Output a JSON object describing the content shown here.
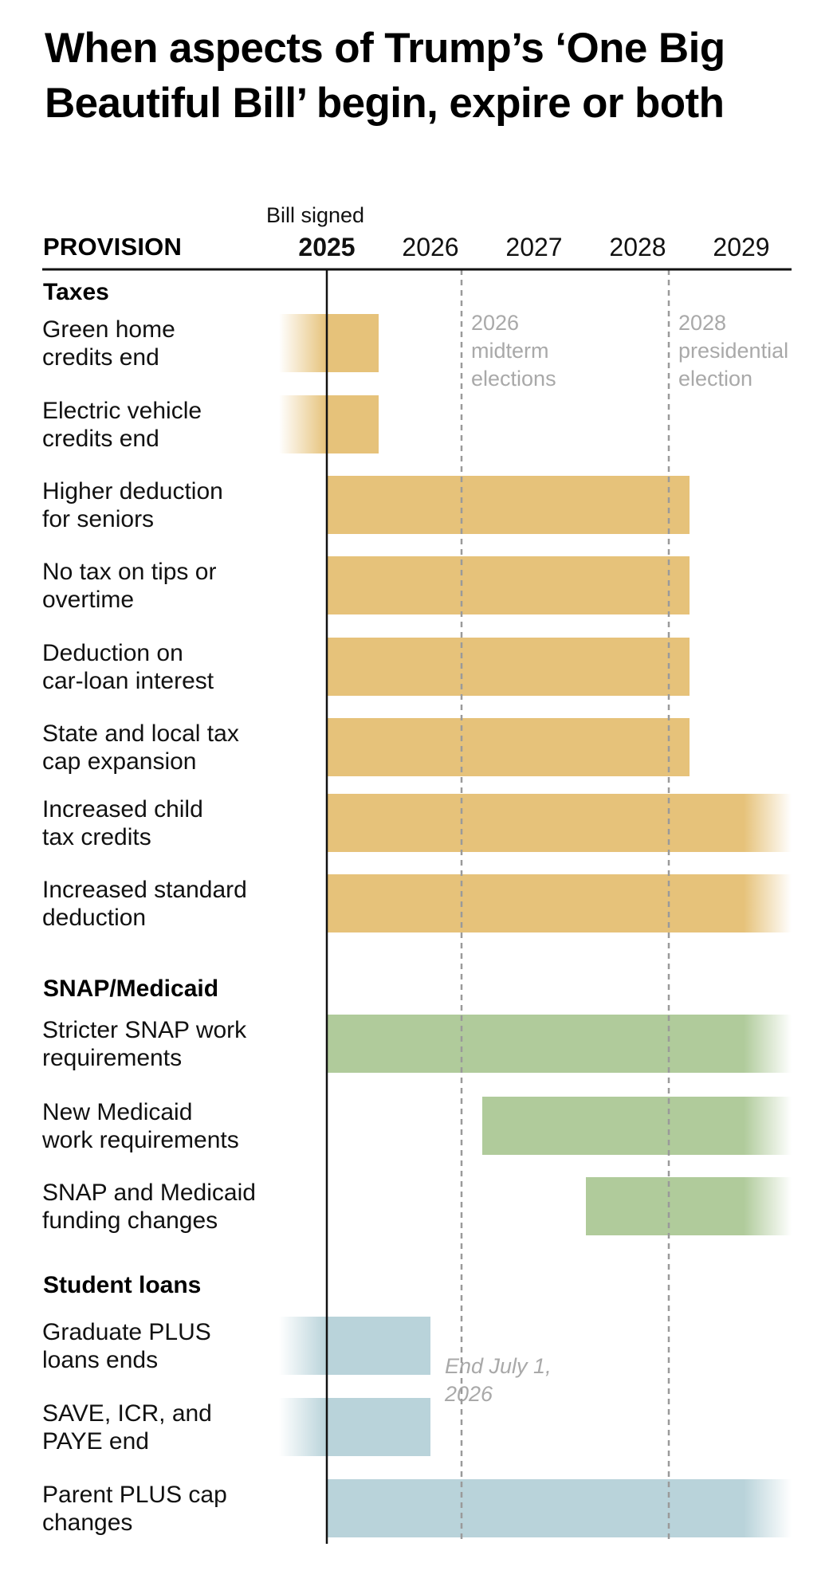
{
  "chart_data": {
    "type": "gantt-timeline",
    "title": "When aspects of Trump’s ‘One Big Beautiful Bill’ begin, expire or both",
    "column_header": "PROVISION",
    "x_axis": {
      "ticks": [
        {
          "label": "2025",
          "year": 2025,
          "bold": true
        },
        {
          "label": "2026",
          "year": 2026,
          "bold": false
        },
        {
          "label": "2027",
          "year": 2027,
          "bold": false
        },
        {
          "label": "2028",
          "year": 2028,
          "bold": false
        },
        {
          "label": "2029",
          "year": 2029,
          "bold": false
        }
      ],
      "range": [
        2025.0,
        2030.0
      ],
      "bill_signed": {
        "label": "Bill signed",
        "date": 2025.5
      }
    },
    "reference_lines": [
      {
        "date": 2026.8,
        "label_lines": [
          "2026",
          "midterm",
          "elections"
        ]
      },
      {
        "date": 2028.8,
        "label_lines": [
          "2028",
          "presidential",
          "election"
        ]
      }
    ],
    "colors": {
      "Taxes": "#e6c27a",
      "SNAP/Medicaid": "#b0cb9b",
      "Student loans": "#b9d3da",
      "axis": "#111111",
      "reference_line": "#9a9a9a",
      "annotation": "#a9a9a9"
    },
    "sections": [
      {
        "name": "Taxes",
        "rows": [
          {
            "label": "Green home credits end",
            "lines": [
              "Green home",
              "credits end"
            ],
            "start": null,
            "end": 2026.0,
            "open_start": true,
            "open_end": false
          },
          {
            "label": "Electric vehicle credits end",
            "lines": [
              "Electric vehicle",
              "credits end"
            ],
            "start": null,
            "end": 2026.0,
            "open_start": true,
            "open_end": false
          },
          {
            "label": "Higher deduction for seniors",
            "lines": [
              "Higher deduction",
              "for seniors"
            ],
            "start": 2025.5,
            "end": 2029.0,
            "open_start": false,
            "open_end": false
          },
          {
            "label": "No tax on tips or overtime",
            "lines": [
              "No tax on tips or",
              "overtime"
            ],
            "start": 2025.5,
            "end": 2029.0,
            "open_start": false,
            "open_end": false
          },
          {
            "label": "Deduction on car-loan interest",
            "lines": [
              "Deduction on",
              "car-loan interest"
            ],
            "start": 2025.5,
            "end": 2029.0,
            "open_start": false,
            "open_end": false
          },
          {
            "label": "State and local tax cap expansion",
            "lines": [
              "State and local tax",
              "cap expansion"
            ],
            "start": 2025.5,
            "end": 2029.0,
            "open_start": false,
            "open_end": false
          },
          {
            "label": "Increased child tax credits",
            "lines": [
              "Increased child",
              "tax credits"
            ],
            "start": 2025.5,
            "end": null,
            "open_start": false,
            "open_end": true
          },
          {
            "label": "Increased standard deduction",
            "lines": [
              "Increased standard",
              "deduction"
            ],
            "start": 2025.5,
            "end": null,
            "open_start": false,
            "open_end": true
          }
        ]
      },
      {
        "name": "SNAP/Medicaid",
        "rows": [
          {
            "label": "Stricter SNAP work requirements",
            "lines": [
              "Stricter SNAP work",
              "requirements"
            ],
            "start": 2025.5,
            "end": null,
            "open_start": false,
            "open_end": true
          },
          {
            "label": "New Medicaid work requirements",
            "lines": [
              "New Medicaid",
              "work requirements"
            ],
            "start": 2027.0,
            "end": null,
            "open_start": false,
            "open_end": true
          },
          {
            "label": "SNAP and Medicaid funding changes",
            "lines": [
              "SNAP and Medicaid",
              "funding changes"
            ],
            "start": 2028.0,
            "end": null,
            "open_start": false,
            "open_end": true
          }
        ]
      },
      {
        "name": "Student loans",
        "rows": [
          {
            "label": "Graduate PLUS loans ends",
            "lines": [
              "Graduate PLUS",
              "loans ends"
            ],
            "start": null,
            "end": 2026.5,
            "open_start": true,
            "open_end": false
          },
          {
            "label": "SAVE, ICR, and PAYE end",
            "lines": [
              "SAVE, ICR, and",
              "PAYE end"
            ],
            "start": null,
            "end": 2026.5,
            "open_start": true,
            "open_end": false
          },
          {
            "label": "Parent PLUS cap changes",
            "lines": [
              "Parent PLUS cap",
              "changes"
            ],
            "start": 2025.5,
            "end": null,
            "open_start": false,
            "open_end": true
          }
        ]
      }
    ],
    "annotations": [
      {
        "text_lines": [
          "End July 1,",
          "2026"
        ],
        "date": 2026.5,
        "section": "Student loans",
        "style": "italic"
      }
    ]
  },
  "header": {
    "title": "When aspects of Trump’s ‘One Big Beautiful Bill’ begin, expire or both",
    "provision_label": "PROVISION",
    "bill_signed_label": "Bill signed"
  }
}
